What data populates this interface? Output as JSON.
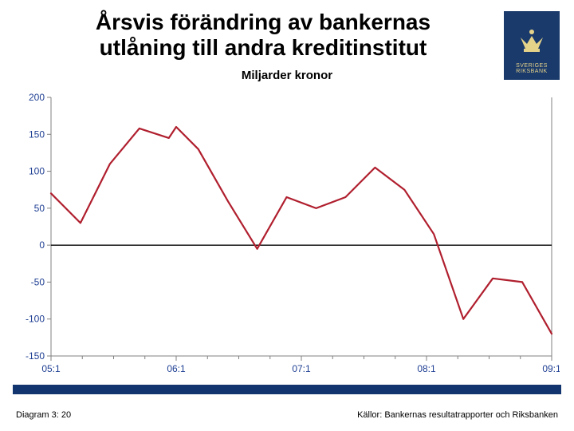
{
  "title_line1": "Årsvis förändring av bankernas",
  "title_line2": "utlåning till andra kreditinstitut",
  "subtitle": "Miljarder kronor",
  "logo": {
    "line1": "SVERIGES",
    "line2": "RIKSBANK",
    "bg": "#1a3a6b",
    "fg": "#e6d38a"
  },
  "footer_left": "Diagram 3: 20",
  "footer_right": "Källor: Bankernas resultatrapporter och Riksbanken",
  "blue_bar_color": "#13356f",
  "chart": {
    "type": "line",
    "background_color": "#ffffff",
    "line_color": "#b01f2e",
    "line_width": 2.2,
    "zero_line_color": "#000000",
    "inner_border_color": "#808080",
    "axis_label_color": "#1f3f93",
    "axis_label_fontsize": 12,
    "ylim": [
      -150,
      200
    ],
    "ytick_step": 50,
    "yticks": [
      -150,
      -100,
      -50,
      0,
      50,
      100,
      150,
      200
    ],
    "xticks": [
      {
        "x": 0,
        "label": "05:1"
      },
      {
        "x": 4.25,
        "label": "06:1"
      },
      {
        "x": 8.5,
        "label": "07:1"
      },
      {
        "x": 12.75,
        "label": "08:1"
      },
      {
        "x": 17,
        "label": "09:1"
      }
    ],
    "xtick_minor": [
      1.0625,
      2.125,
      3.1875,
      5.3125,
      6.375,
      7.4375,
      9.5625,
      10.625,
      11.6875,
      13.8125,
      14.875,
      15.9375
    ],
    "x_range": [
      0,
      17
    ],
    "series": [
      {
        "x": 0,
        "y": 70
      },
      {
        "x": 1,
        "y": 30
      },
      {
        "x": 2,
        "y": 110
      },
      {
        "x": 3,
        "y": 158
      },
      {
        "x": 4,
        "y": 145
      },
      {
        "x": 4.25,
        "y": 160
      },
      {
        "x": 5,
        "y": 130
      },
      {
        "x": 6,
        "y": 60
      },
      {
        "x": 7,
        "y": -5
      },
      {
        "x": 8,
        "y": 65
      },
      {
        "x": 9,
        "y": 50
      },
      {
        "x": 10,
        "y": 65
      },
      {
        "x": 11,
        "y": 105
      },
      {
        "x": 12,
        "y": 75
      },
      {
        "x": 13,
        "y": 15
      },
      {
        "x": 14,
        "y": -100
      },
      {
        "x": 15,
        "y": -45
      },
      {
        "x": 16,
        "y": -50
      },
      {
        "x": 17,
        "y": -120
      }
    ]
  }
}
